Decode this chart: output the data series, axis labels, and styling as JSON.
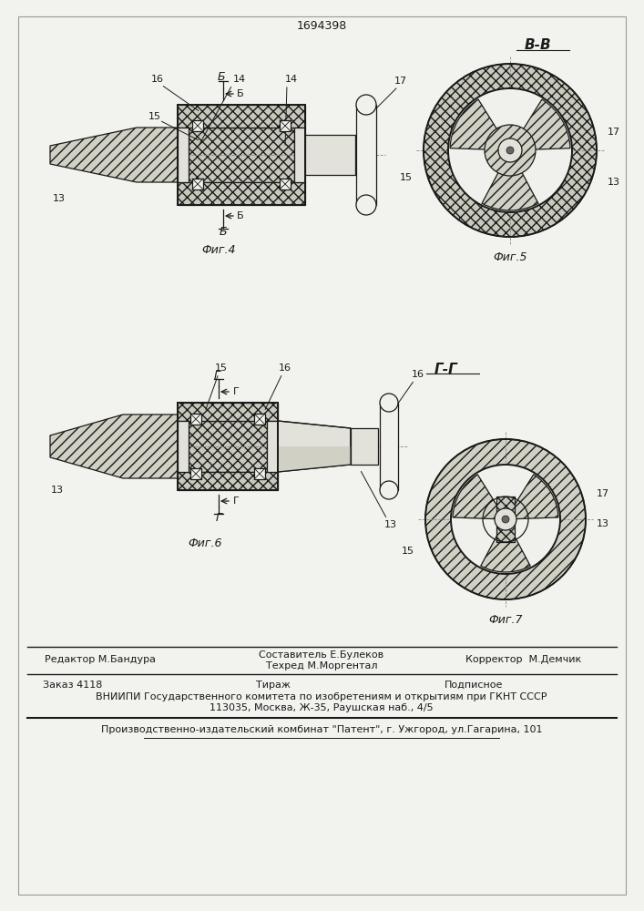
{
  "patent_number": "1694398",
  "fig4_label": "Фиг.4",
  "fig5_label": "Фиг.5",
  "fig6_label": "Фиг.6",
  "fig7_label": "Фиг.7",
  "section_BB": "В-В",
  "section_GG": "Г-Г",
  "sec_B_letter": "Б",
  "sec_G_letter": "Г",
  "label_13": "13",
  "label_14": "14",
  "label_15": "15",
  "label_16": "16",
  "label_17": "17",
  "editor_line": "Редактор М.Бандура",
  "composer_line": "Составитель Е.Булеков",
  "techred_line": "Техред М.Моргентал",
  "corrector_line": "Корректор  М.Демчик",
  "order_line": "Заказ 4118",
  "tirazh_line": "Тираж",
  "podpisnoe_line": "Подписное",
  "vniiipi_line": "ВНИИПИ Государственного комитета по изобретениям и открытиям при ГКНТ СССР",
  "address_line": "113035, Москва, Ж-35, Раушская наб., 4/5",
  "patent_line": "Производственно-издательский комбинат \"Патент\", г. Ужгород, ул.Гагарина, 101",
  "bg_color": "#f2f2ee",
  "line_color": "#1a1a1a",
  "fc_hatch_x": "#c8c8bc",
  "fc_hatch_sl": "#d0d0c4",
  "fc_plain": "#e2e2da",
  "fc_white": "#f0f0ec"
}
